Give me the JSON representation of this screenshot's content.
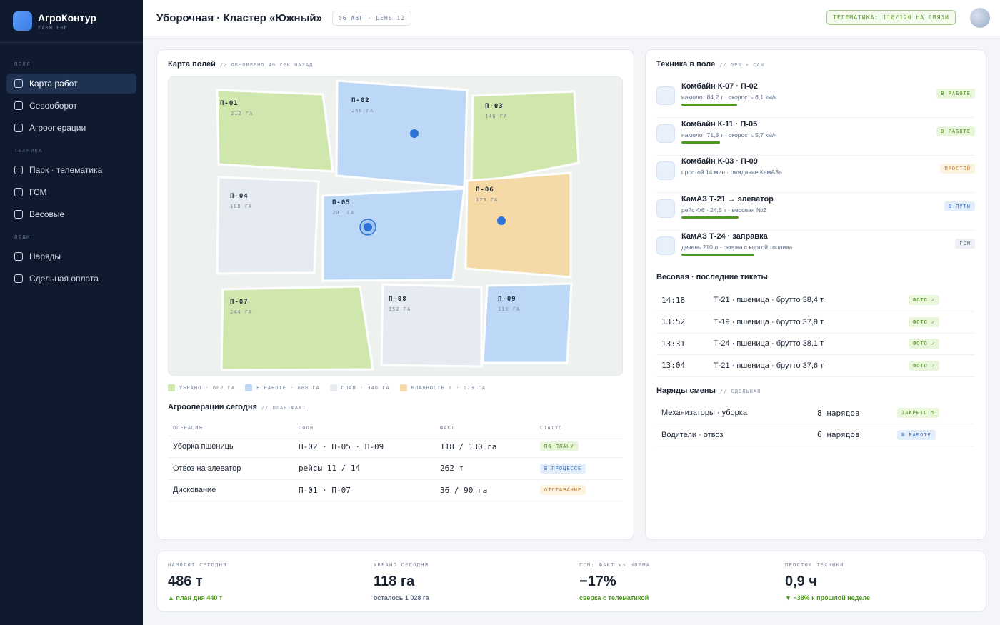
{
  "app": {
    "name": "АгроКонтур",
    "subtitle": "FARM ERP"
  },
  "sidebar": {
    "sections": [
      {
        "title": "ПОЛЯ",
        "items": [
          {
            "label": "Карта работ",
            "icon": "square-icon",
            "active": true
          },
          {
            "label": "Севооборот",
            "icon": "square-icon"
          },
          {
            "label": "Агрооперации",
            "icon": "square-icon"
          }
        ]
      },
      {
        "title": "ТЕХНИКА",
        "items": [
          {
            "label": "Парк · телематика",
            "icon": "square-icon"
          },
          {
            "label": "ГСМ",
            "icon": "square-icon"
          },
          {
            "label": "Весовые",
            "icon": "square-icon"
          }
        ]
      },
      {
        "title": "ЛЮДИ",
        "items": [
          {
            "label": "Наряды",
            "icon": "square-icon"
          },
          {
            "label": "Сдельная оплата",
            "icon": "square-icon"
          }
        ]
      }
    ]
  },
  "header": {
    "title": "Уборочная · Кластер «Южный»",
    "date": "06 АВГ · ДЕНЬ 12",
    "telematics": "ТЕЛЕМАТИКА: 118/120 НА СВЯЗИ"
  },
  "map": {
    "title": "Карта полей",
    "hint": "// ОБНОВЛЕНО 40 СЕК НАЗАД",
    "fields": [
      {
        "id": "П-01",
        "area": "212 ГА",
        "status": "done"
      },
      {
        "id": "П-02",
        "area": "268 ГА",
        "status": "work"
      },
      {
        "id": "П-03",
        "area": "146 ГА",
        "status": "done"
      },
      {
        "id": "П-04",
        "area": "188 ГА",
        "status": "plan"
      },
      {
        "id": "П-05",
        "area": "301 ГА",
        "status": "work"
      },
      {
        "id": "П-06",
        "area": "173 ГА",
        "status": "moist"
      },
      {
        "id": "П-07",
        "area": "244 ГА",
        "status": "done"
      },
      {
        "id": "П-08",
        "area": "152 ГА",
        "status": "plan"
      },
      {
        "id": "П-09",
        "area": "119 ГА",
        "status": "work"
      }
    ],
    "legend": [
      {
        "label": "УБРАНО · 602 ГА",
        "color": "#cfe6ad"
      },
      {
        "label": "В РАБОТЕ · 688 ГА",
        "color": "#bcd8f6"
      },
      {
        "label": "ПЛАН · 340 ГА",
        "color": "#e6ebf2"
      },
      {
        "label": "ВЛАЖНОСТЬ ↑ · 173 ГА",
        "color": "#f5d9a6"
      }
    ],
    "colors": {
      "done": "#cfe6ad",
      "work": "#bcd8f6",
      "plan": "#e6ebf2",
      "moist": "#f5d9a6",
      "marker": "#2b73d6"
    }
  },
  "ops": {
    "title": "Агрооперации сегодня",
    "hint": "// ПЛАН-ФАКТ",
    "columns": [
      "ОПЕРАЦИЯ",
      "ПОЛЯ",
      "ФАКТ",
      "СТАТУС"
    ],
    "rows": [
      {
        "op": "Уборка пшеницы",
        "fields": "П-02 · П-05 · П-09",
        "fact": "118 / 130 га",
        "status": "ПО ПЛАНУ",
        "tone": "green"
      },
      {
        "op": "Отвоз на элеватор",
        "fields": "рейсы 11 / 14",
        "fact": "262 т",
        "status": "В ПРОЦЕССЕ",
        "tone": "blue"
      },
      {
        "op": "Дискование",
        "fields": "П-01 · П-07",
        "fact": "36 / 90 га",
        "status": "ОТСТАВАНИЕ",
        "tone": "orange"
      }
    ]
  },
  "equipment": {
    "title": "Техника в поле",
    "hint": "// GPS + CAN",
    "items": [
      {
        "name": "Комбайн К-07 · П-02",
        "detail": "намолот 84,2 т · скорость 6,1 км/ч",
        "status": "В РАБОТЕ",
        "tone": "green",
        "progress": 0.65
      },
      {
        "name": "Комбайн К-11 · П-05",
        "detail": "намолот 71,8 т · скорость 5,7 км/ч",
        "status": "В РАБОТЕ",
        "tone": "green",
        "progress": 0.45
      },
      {
        "name": "Комбайн К-03 · П-09",
        "detail": "простой 14 мин · ожидание КамАЗа",
        "status": "ПРОСТОЙ",
        "tone": "orange",
        "progress": 0
      },
      {
        "name": "КамАЗ Т-21 → элеватор",
        "detail": "рейс 4/6 · 24,5 т · весовая №2",
        "status": "В ПУТИ",
        "tone": "blue",
        "progress": 0.67
      },
      {
        "name": "КамАЗ Т-24 · заправка",
        "detail": "дизель 210 л · сверка с картой топлива",
        "status": "ГСМ",
        "tone": "grey",
        "progress": 0.85
      }
    ]
  },
  "tickets": {
    "title": "Весовая · последние тикеты",
    "rows": [
      {
        "time": "14:18",
        "text": "Т-21 · пшеница · брутто 38,4 т",
        "badge": "ФОТО ✓"
      },
      {
        "time": "13:52",
        "text": "Т-19 · пшеница · брутто 37,9 т",
        "badge": "ФОТО ✓"
      },
      {
        "time": "13:31",
        "text": "Т-24 · пшеница · брутто 38,1 т",
        "badge": "ФОТО ✓"
      },
      {
        "time": "13:04",
        "text": "Т-21 · пшеница · брутто 37,6 т",
        "badge": "ФОТО ✓"
      }
    ]
  },
  "orders": {
    "title": "Наряды смены",
    "hint": "// СДЕЛЬНАЯ",
    "rows": [
      {
        "group": "Механизаторы · уборка",
        "count": "8 нарядов",
        "status": "ЗАКРЫТО 5",
        "tone": "green"
      },
      {
        "group": "Водители · отвоз",
        "count": "6 нарядов",
        "status": "В РАБОТЕ",
        "tone": "blue"
      }
    ]
  },
  "kpis": [
    {
      "label": "НАМОЛОТ СЕГОДНЯ",
      "value": "486 т",
      "note": "▲ план дня 440 т",
      "note_color": "#4f9a1e"
    },
    {
      "label": "УБРАНО СЕГОДНЯ",
      "value": "118 га",
      "note": "осталось 1 028 га",
      "note_color": "#5d6b85"
    },
    {
      "label": "ГСМ: ФАКТ vs НОРМА",
      "value": "−17%",
      "note": "сверка с телематикой",
      "note_color": "#4f9a1e"
    },
    {
      "label": "ПРОСТОИ ТЕХНИКИ",
      "value": "0,9 ч",
      "note": "▼ −38% к прошлой неделе",
      "note_color": "#4f9a1e"
    }
  ]
}
